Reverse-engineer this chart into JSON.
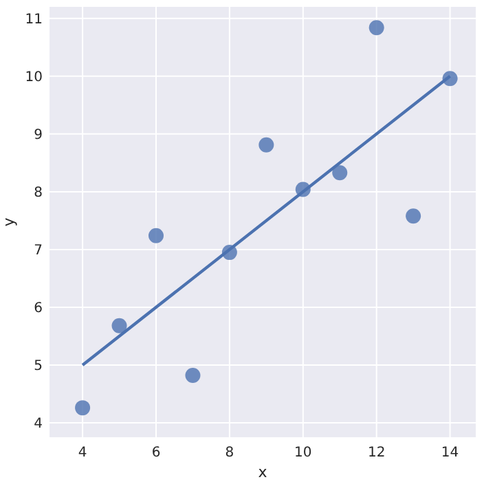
{
  "chart_data": {
    "type": "scatter",
    "xlabel": "x",
    "ylabel": "y",
    "xlim": [
      3.1,
      14.7
    ],
    "ylim": [
      3.75,
      11.2
    ],
    "xticks": [
      4,
      6,
      8,
      10,
      12,
      14
    ],
    "yticks": [
      4,
      5,
      6,
      7,
      8,
      9,
      10,
      11
    ],
    "grid": true,
    "series": [
      {
        "color": "#4c72b0",
        "marker": "circle",
        "x": [
          10,
          8,
          13,
          9,
          11,
          14,
          6,
          4,
          12,
          7,
          5
        ],
        "values": [
          8.04,
          6.95,
          7.58,
          8.81,
          8.33,
          9.96,
          7.24,
          4.26,
          10.84,
          4.82,
          5.68
        ]
      },
      {
        "type": "line",
        "color": "#4c72b0",
        "x": [
          4,
          14
        ],
        "values": [
          5.0,
          10.0
        ]
      }
    ]
  }
}
